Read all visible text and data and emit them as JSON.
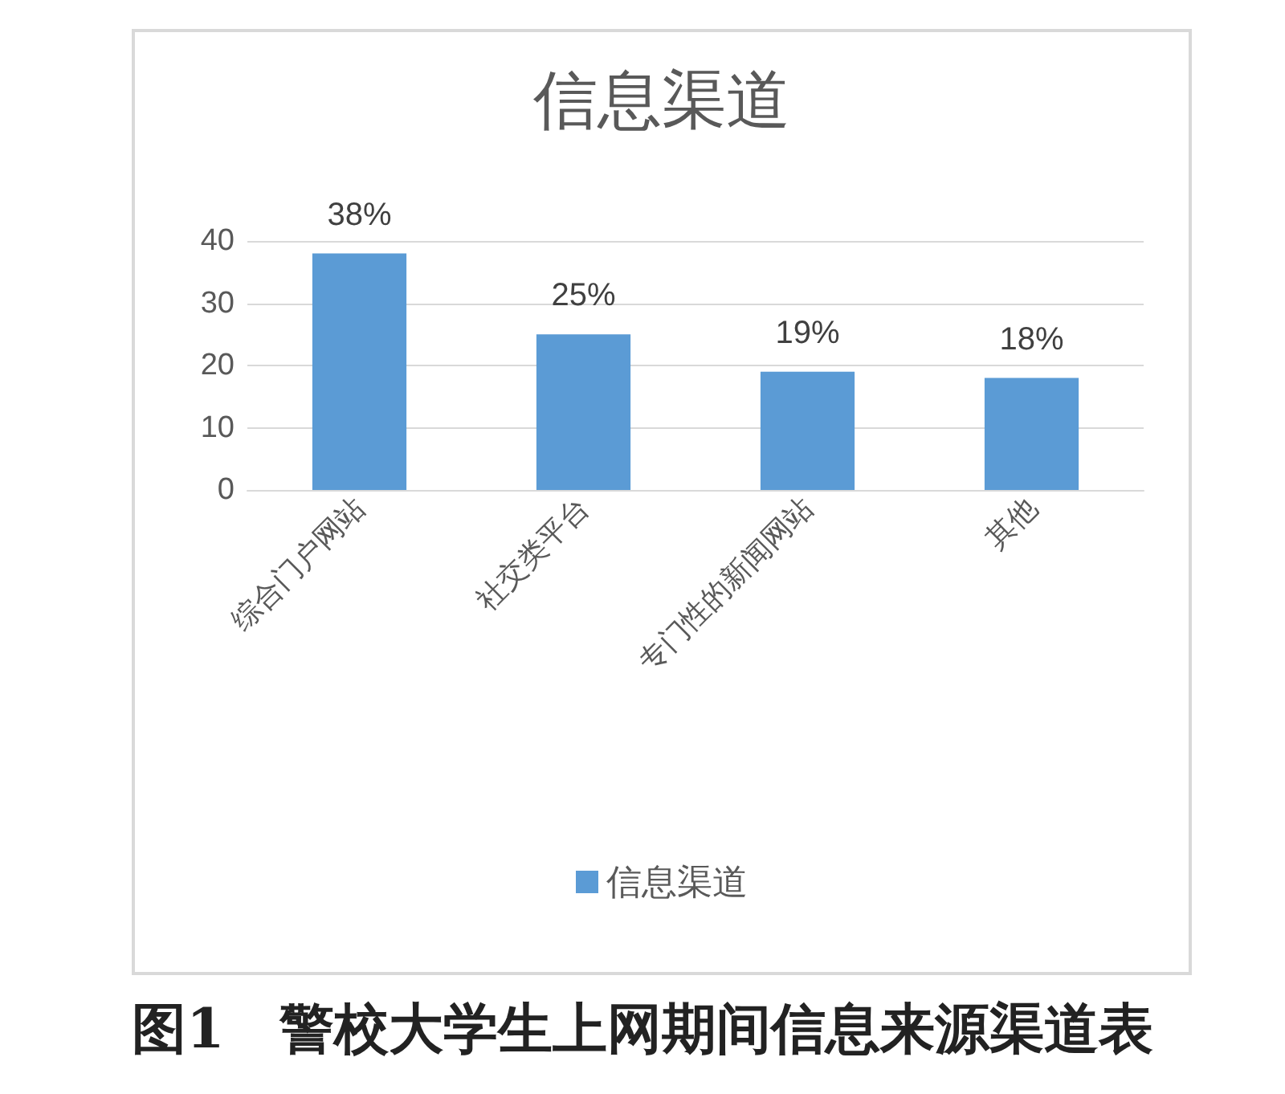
{
  "chart_data": {
    "type": "bar",
    "title": "信息渠道",
    "categories": [
      "综合门户网站",
      "社交类平台",
      "专门性的新闻网站",
      "其他"
    ],
    "series": [
      {
        "name": "信息渠道",
        "color": "#5b9bd5",
        "values": [
          38,
          25,
          19,
          18
        ],
        "value_labels": [
          "38%",
          "25%",
          "19%",
          "18%"
        ]
      }
    ],
    "ylim": [
      0,
      40
    ],
    "yticks": [
      0,
      10,
      20,
      30,
      40
    ],
    "grid": "y",
    "legend": "bottom",
    "annotations": [
      "图1　警校大学生上网期间信息来源渠道表"
    ]
  }
}
